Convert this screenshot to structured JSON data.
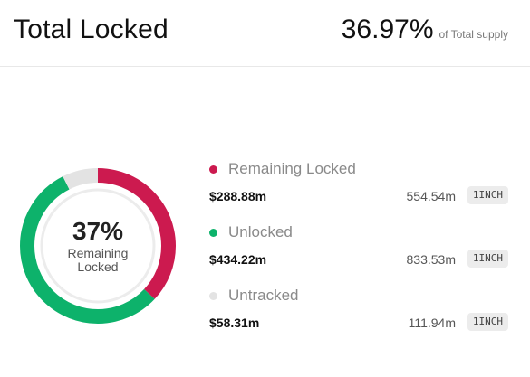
{
  "header": {
    "title": "Total Locked",
    "percentage": "36.97%",
    "percentage_suffix": "of Total supply"
  },
  "donut": {
    "center_value": "37%",
    "center_label": "Remaining Locked",
    "segments": [
      {
        "name": "Remaining Locked",
        "usd": 288.88,
        "color": "#cc1a4f"
      },
      {
        "name": "Unlocked",
        "usd": 434.22,
        "color": "#0db26b"
      },
      {
        "name": "Untracked",
        "usd": 58.31,
        "color": "#e3e3e3"
      }
    ]
  },
  "legend": {
    "items": [
      {
        "name": "Remaining Locked",
        "usd": "$288.88m",
        "amount": "554.54m",
        "token": "1INCH",
        "color": "#cc1a4f"
      },
      {
        "name": "Unlocked",
        "usd": "$434.22m",
        "amount": "833.53m",
        "token": "1INCH",
        "color": "#0db26b"
      },
      {
        "name": "Untracked",
        "usd": "$58.31m",
        "amount": "111.94m",
        "token": "1INCH",
        "color": "#e3e3e3"
      }
    ]
  }
}
